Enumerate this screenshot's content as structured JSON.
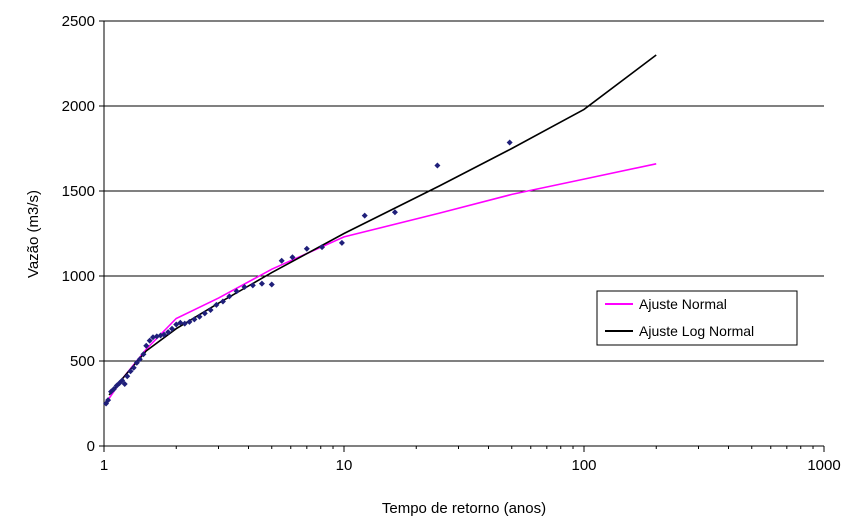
{
  "chart_data": {
    "type": "scatter",
    "title": "",
    "xlabel": "Tempo de retorno (anos)",
    "ylabel": "Vazão (m3/s)",
    "x_scale": "log",
    "xlim": [
      1,
      1000
    ],
    "ylim": [
      0,
      2500
    ],
    "x_ticks": [
      1,
      10,
      100,
      1000
    ],
    "y_ticks": [
      0,
      500,
      1000,
      1500,
      2000,
      2500
    ],
    "grid": "horizontal",
    "legend_position": "right",
    "series": [
      {
        "kind": "scatter",
        "color": "#1f1f7a",
        "marker": "diamond",
        "points": [
          [
            1.02,
            250
          ],
          [
            1.04,
            270
          ],
          [
            1.07,
            320
          ],
          [
            1.1,
            335
          ],
          [
            1.13,
            355
          ],
          [
            1.16,
            370
          ],
          [
            1.19,
            385
          ],
          [
            1.22,
            365
          ],
          [
            1.25,
            410
          ],
          [
            1.29,
            440
          ],
          [
            1.33,
            460
          ],
          [
            1.37,
            490
          ],
          [
            1.41,
            510
          ],
          [
            1.46,
            540
          ],
          [
            1.5,
            590
          ],
          [
            1.55,
            620
          ],
          [
            1.6,
            640
          ],
          [
            1.66,
            645
          ],
          [
            1.72,
            650
          ],
          [
            1.78,
            655
          ],
          [
            1.85,
            670
          ],
          [
            1.92,
            690
          ],
          [
            2.0,
            715
          ],
          [
            2.08,
            725
          ],
          [
            2.17,
            720
          ],
          [
            2.27,
            730
          ],
          [
            2.38,
            745
          ],
          [
            2.5,
            760
          ],
          [
            2.63,
            780
          ],
          [
            2.78,
            800
          ],
          [
            2.94,
            830
          ],
          [
            3.13,
            850
          ],
          [
            3.33,
            880
          ],
          [
            3.57,
            910
          ],
          [
            3.85,
            935
          ],
          [
            4.17,
            945
          ],
          [
            4.55,
            955
          ],
          [
            5.0,
            950
          ],
          [
            5.5,
            1090
          ],
          [
            6.1,
            1110
          ],
          [
            7.0,
            1160
          ],
          [
            8.1,
            1170
          ],
          [
            9.8,
            1195
          ],
          [
            12.2,
            1355
          ],
          [
            16.3,
            1375
          ],
          [
            24.5,
            1650
          ],
          [
            49,
            1785
          ]
        ]
      },
      {
        "kind": "line",
        "name": "Ajuste Normal",
        "color": "#ff00ff",
        "points": [
          [
            1.05,
            280
          ],
          [
            1.2,
            400
          ],
          [
            1.5,
            570
          ],
          [
            2.0,
            750
          ],
          [
            3,
            870
          ],
          [
            5,
            1040
          ],
          [
            10,
            1230
          ],
          [
            25,
            1370
          ],
          [
            50,
            1480
          ],
          [
            100,
            1570
          ],
          [
            200,
            1660
          ]
        ]
      },
      {
        "kind": "line",
        "name": "Ajuste Log Normal",
        "color": "#000000",
        "points": [
          [
            1.05,
            300
          ],
          [
            1.2,
            400
          ],
          [
            1.5,
            560
          ],
          [
            2.0,
            690
          ],
          [
            3,
            840
          ],
          [
            5,
            1020
          ],
          [
            10,
            1250
          ],
          [
            25,
            1530
          ],
          [
            50,
            1750
          ],
          [
            100,
            1980
          ],
          [
            200,
            2300
          ]
        ]
      }
    ]
  }
}
